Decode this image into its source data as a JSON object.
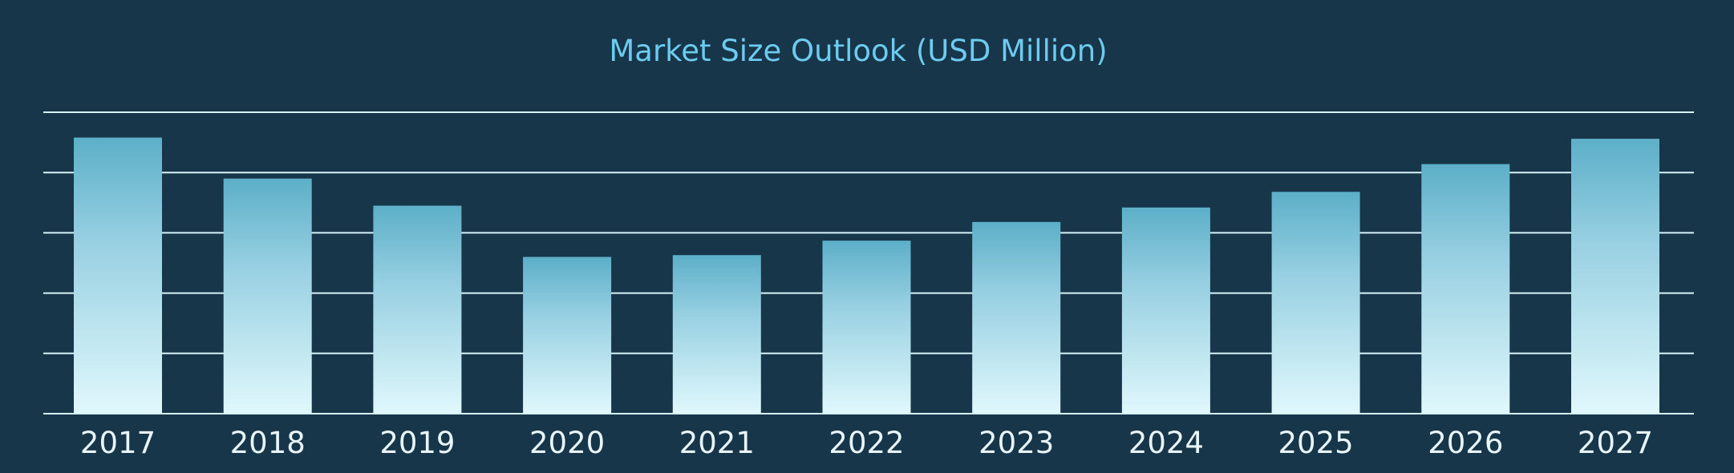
{
  "chart_data": {
    "type": "bar",
    "title": "Market Size Outlook (USD Million)",
    "xlabel": "",
    "ylabel": "",
    "categories": [
      "2017",
      "2018",
      "2019",
      "2020",
      "2021",
      "2022",
      "2023",
      "2024",
      "2025",
      "2026",
      "2027"
    ],
    "values": [
      4.58,
      3.9,
      3.45,
      2.6,
      2.63,
      2.87,
      3.18,
      3.42,
      3.68,
      4.14,
      4.56
    ],
    "ylim": [
      0,
      5
    ],
    "grid": true,
    "legend": "none",
    "colors": {
      "background": "#18364a",
      "title": "#6ccbef",
      "tick_label": "#e8f6fb",
      "gridline": "#d8f3f8",
      "bar_top": "#5cafc8",
      "bar_bottom": "#e0f8fc"
    }
  }
}
